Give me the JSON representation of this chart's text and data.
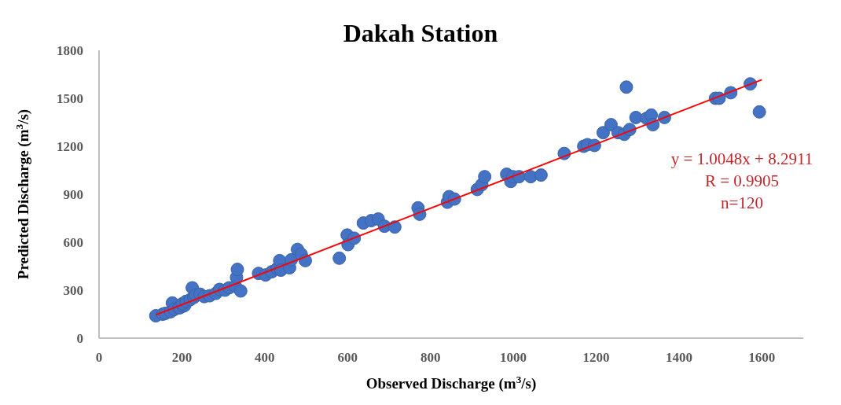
{
  "chart_data": {
    "type": "scatter",
    "title": "Dakah Station",
    "xlabel": "Observed Discharge (m$^{3}$/s)",
    "ylabel": "Predicted Discharge (m$^{3}$/s)",
    "xlim": [
      0,
      1700
    ],
    "xticks": [
      0,
      200,
      400,
      600,
      800,
      1000,
      1200,
      1400,
      1600
    ],
    "ylim": [
      0,
      1800
    ],
    "yticks": [
      0,
      300,
      600,
      900,
      1200,
      1500,
      1800
    ],
    "series": [
      {
        "color": "#4472c4",
        "marker": "circle",
        "x": [
          137,
          154,
          160,
          173,
          177,
          182,
          192,
          195,
          203,
          207,
          201,
          210,
          220,
          225,
          229,
          233,
          244,
          254,
          267,
          282,
          291,
          304,
          314,
          329,
          332,
          334,
          342,
          385,
          402,
          417,
          430,
          436,
          439,
          460,
          464,
          479,
          488,
          498,
          580,
          599,
          601,
          616,
          638,
          657,
          674,
          689,
          714,
          770,
          774,
          841,
          845,
          858,
          913,
          924,
          931,
          984,
          994,
          999,
          1014,
          1042,
          1067,
          1123,
          1170,
          1179,
          1196,
          1217,
          1236,
          1253,
          1268,
          1273,
          1281,
          1296,
          1322,
          1333,
          1337,
          1365,
          1488,
          1497,
          1525,
          1572,
          1594
        ],
        "values": [
          140,
          150,
          155,
          165,
          220,
          180,
          190,
          190,
          200,
          205,
          215,
          230,
          240,
          315,
          255,
          270,
          275,
          260,
          265,
          280,
          305,
          300,
          315,
          325,
          380,
          430,
          295,
          405,
          395,
          415,
          435,
          485,
          425,
          440,
          490,
          555,
          525,
          485,
          500,
          645,
          585,
          625,
          720,
          735,
          745,
          700,
          695,
          815,
          775,
          850,
          885,
          870,
          930,
          960,
          1010,
          1025,
          980,
          1010,
          1010,
          1010,
          1020,
          1155,
          1200,
          1210,
          1205,
          1285,
          1335,
          1285,
          1275,
          1570,
          1305,
          1380,
          1375,
          1395,
          1335,
          1380,
          1500,
          1500,
          1535,
          1590,
          1415
        ]
      },
      {
        "type": "line",
        "color": "#ff0000",
        "line_style": "solid",
        "marker": "none",
        "x": [
          137,
          1600
        ],
        "values": [
          146,
          1616
        ]
      }
    ],
    "annotations": [
      "y = 1.0048x + 8.2911",
      "R = 0.9905",
      "n=120"
    ]
  }
}
